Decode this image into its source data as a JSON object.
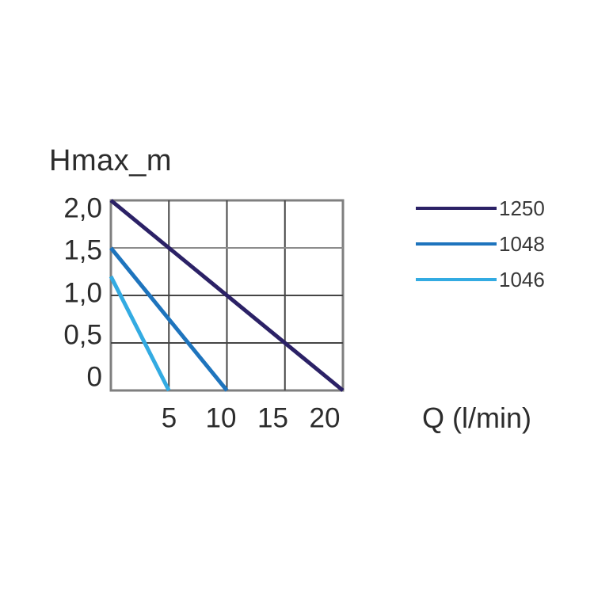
{
  "chart_data": {
    "type": "line",
    "title": "Hmax_m",
    "xlabel": "Q (l/min)",
    "ylabel": "Hmax_m",
    "y_unit": "m",
    "x_unit": "l/min",
    "xlim": [
      0,
      20
    ],
    "ylim": [
      0,
      2.0
    ],
    "x_ticks": [
      5,
      10,
      15,
      20
    ],
    "x_tick_labels": [
      "5",
      "10",
      "15",
      "20"
    ],
    "y_ticks": [
      0,
      0.5,
      1.0,
      1.5,
      2.0
    ],
    "y_tick_labels": [
      "0",
      "0,5",
      "1,0",
      "1,5",
      "2,0"
    ],
    "grid": true,
    "legend_position": "right",
    "series": [
      {
        "name": "1250",
        "color": "#2b2166",
        "points": [
          [
            0,
            2.0
          ],
          [
            20,
            0
          ]
        ]
      },
      {
        "name": "1048",
        "color": "#1e74bd",
        "points": [
          [
            0,
            1.5
          ],
          [
            10,
            0
          ]
        ]
      },
      {
        "name": "1046",
        "color": "#33abe2",
        "points": [
          [
            0,
            1.2
          ],
          [
            5,
            0
          ]
        ]
      }
    ]
  },
  "colors": {
    "plot_border": "#7f7f7f",
    "grid_line": "#454545",
    "grid_line_light": "#8c8c8c",
    "text": "#2c2c2c",
    "background": "#ffffff"
  }
}
